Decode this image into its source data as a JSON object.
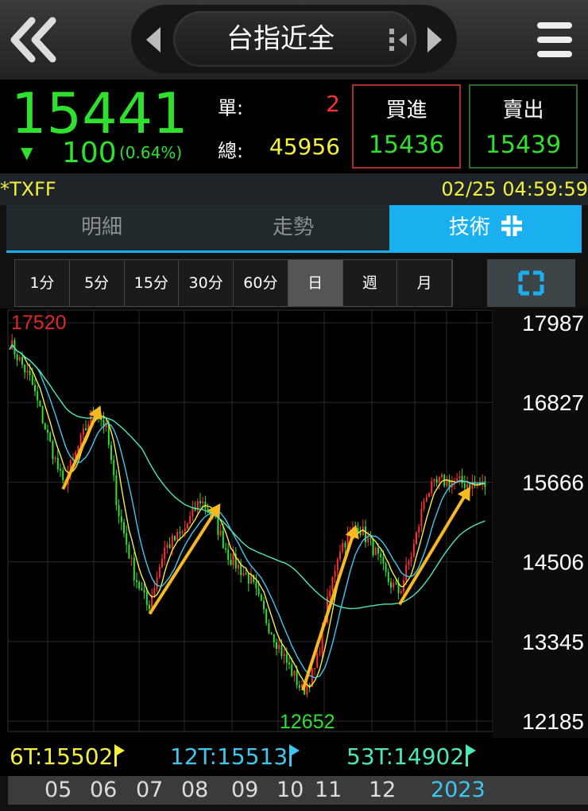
{
  "header": {
    "title": "台指近全",
    "back_icon": "double-chevron-left-icon",
    "prev_icon": "triangle-left-icon",
    "next_icon": "triangle-right-icon",
    "menu_icon": "hamburger-icon",
    "switch_icon": "switch-icon"
  },
  "quote": {
    "price": "15441",
    "change_arrow": "▼",
    "change": "100",
    "change_pct": "(0.64%)",
    "single_label": "單:",
    "single_value": "2",
    "total_label": "總:",
    "total_value": "45956",
    "buy_label": "買進",
    "buy_value": "15436",
    "sell_label": "賣出",
    "sell_value": "15439"
  },
  "info": {
    "symbol": "*TXFF",
    "timestamp": "02/25 04:59:59"
  },
  "tabs": [
    {
      "label": "明細"
    },
    {
      "label": "走勢"
    },
    {
      "label": "技術",
      "active": true
    }
  ],
  "timeframes": [
    "1分",
    "5分",
    "15分",
    "30分",
    "60分",
    "日",
    "週",
    "月"
  ],
  "active_timeframe": "日",
  "fullscreen_icon": "expand-icon",
  "colors": {
    "up": "#ff3030",
    "down": "#2fe02f",
    "accent": "#1ab0f0",
    "ma6": "#f4f03c",
    "ma12": "#3ec8f0",
    "ma53": "#4de8b8",
    "arrow": "#f8b820"
  },
  "chart_data": {
    "type": "candlestick",
    "y_ticks": [
      "17987",
      "16827",
      "15666",
      "14506",
      "13345",
      "12185"
    ],
    "ylim": [
      12185,
      17987
    ],
    "x_ticks": [
      "05",
      "06",
      "07",
      "08",
      "09",
      "10",
      "11",
      "12",
      "2023"
    ],
    "high_label": "17520",
    "low_label": "12652",
    "close_series": [
      [
        "2022-04-01",
        17709
      ],
      [
        "2022-04-16",
        17130
      ],
      [
        "2022-04-26",
        16434
      ],
      [
        "2022-05-08",
        15623
      ],
      [
        "2022-05-17",
        16087
      ],
      [
        "2022-05-30",
        16782
      ],
      [
        "2022-06-07",
        16434
      ],
      [
        "2022-06-15",
        15276
      ],
      [
        "2022-06-26",
        14349
      ],
      [
        "2022-07-06",
        13827
      ],
      [
        "2022-07-17",
        14696
      ],
      [
        "2022-07-30",
        14928
      ],
      [
        "2022-08-11",
        15415
      ],
      [
        "2022-08-20",
        15160
      ],
      [
        "2022-08-31",
        14580
      ],
      [
        "2022-09-15",
        14233
      ],
      [
        "2022-09-26",
        13653
      ],
      [
        "2022-10-09",
        13074
      ],
      [
        "2022-10-21",
        12610
      ],
      [
        "2022-10-30",
        12958
      ],
      [
        "2022-11-07",
        13885
      ],
      [
        "2022-11-15",
        14696
      ],
      [
        "2022-11-28",
        15044
      ],
      [
        "2022-12-09",
        14696
      ],
      [
        "2022-12-19",
        14233
      ],
      [
        "2022-12-27",
        14059
      ],
      [
        "2023-01-07",
        14812
      ],
      [
        "2023-01-14",
        15507
      ],
      [
        "2023-01-25",
        15681
      ],
      [
        "2023-02-24",
        15623
      ]
    ],
    "annotations": [
      [
        [
          "2022-05-08",
          15565
        ],
        [
          "2022-06-03",
          16782
        ]
      ],
      [
        [
          "2022-07-07",
          13746
        ],
        [
          "2022-08-25",
          15357
        ]
      ],
      [
        [
          "2022-10-21",
          12634
        ],
        [
          "2022-11-27",
          15044
        ]
      ],
      [
        [
          "2022-12-27",
          13885
        ],
        [
          "2023-02-14",
          15600
        ]
      ]
    ],
    "ma_legend": [
      {
        "label": "6T:15502",
        "color": "#f4f03c"
      },
      {
        "label": "12T:15513",
        "color": "#3ec8f0"
      },
      {
        "label": "53T:14902",
        "color": "#4de8b8"
      }
    ]
  }
}
